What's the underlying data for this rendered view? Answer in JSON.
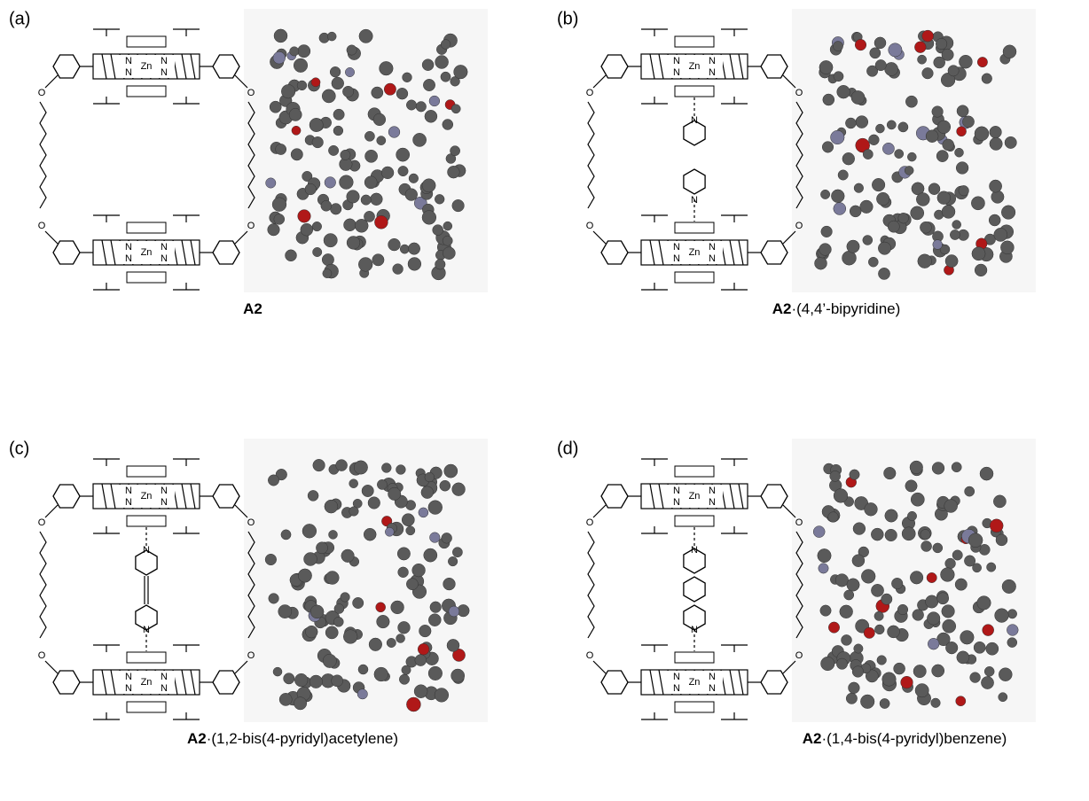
{
  "panels": [
    {
      "label": "(a)",
      "caption_bold": "A2"
    },
    {
      "label": "(b)",
      "caption_bold": "A2",
      "caption_rest": "·(4,4’-bipyridine)"
    },
    {
      "label": "(c)",
      "caption_bold": "A2",
      "caption_rest": "·(1,2-bis(4-pyridyl)acetylene)"
    },
    {
      "label": "(d)",
      "caption_bold": "A2",
      "caption_rest": "·(1,4-bis(4-pyridyl)benzene)"
    }
  ],
  "atoms": {
    "zinc": "Zn",
    "nitrogen": "N",
    "oxygen": "O"
  }
}
